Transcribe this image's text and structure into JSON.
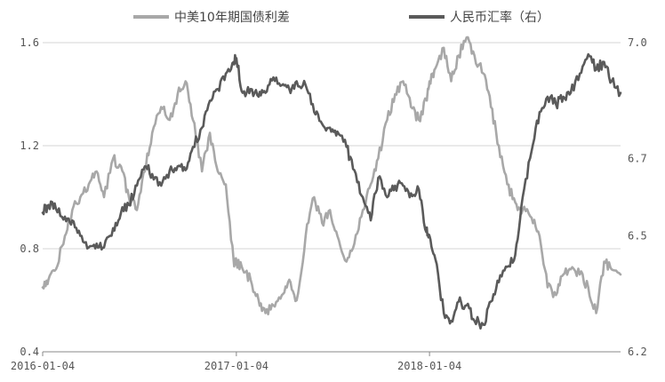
{
  "chart_data": {
    "type": "line",
    "title": "",
    "legend": {
      "placement": "top"
    },
    "grid": {
      "y": true,
      "x": false
    },
    "x_axis": {
      "type": "date",
      "range": [
        "2016-01-04",
        "2018-12-31"
      ],
      "ticks": [
        "2016-01-04",
        "2017-01-04",
        "2018-01-04"
      ]
    },
    "y_left": {
      "range": [
        0.4,
        1.6
      ],
      "ticks": [
        "0.4",
        "0.8",
        "1.2",
        "1.6"
      ]
    },
    "y_right": {
      "range": [
        6.2,
        7.0
      ],
      "ticks": [
        "6.2",
        "6.5",
        "6.7",
        "7.0"
      ]
    },
    "series": [
      {
        "name": "中美10年期国债利差",
        "axis": "left",
        "color": "#a8a8a8",
        "points": [
          [
            "2016-01-04",
            0.65
          ],
          [
            "2016-01-15",
            0.68
          ],
          [
            "2016-01-29",
            0.72
          ],
          [
            "2016-02-15",
            0.85
          ],
          [
            "2016-02-29",
            0.95
          ],
          [
            "2016-03-15",
            1.0
          ],
          [
            "2016-03-31",
            1.05
          ],
          [
            "2016-04-15",
            1.1
          ],
          [
            "2016-04-29",
            1.0
          ],
          [
            "2016-05-16",
            1.15
          ],
          [
            "2016-05-31",
            1.12
          ],
          [
            "2016-06-15",
            1.0
          ],
          [
            "2016-06-30",
            0.95
          ],
          [
            "2016-07-15",
            1.1
          ],
          [
            "2016-07-29",
            1.25
          ],
          [
            "2016-08-15",
            1.35
          ],
          [
            "2016-08-31",
            1.3
          ],
          [
            "2016-09-15",
            1.4
          ],
          [
            "2016-09-30",
            1.45
          ],
          [
            "2016-10-14",
            1.3
          ],
          [
            "2016-10-31",
            1.1
          ],
          [
            "2016-11-15",
            1.25
          ],
          [
            "2016-11-30",
            1.1
          ],
          [
            "2016-12-15",
            1.05
          ],
          [
            "2016-12-30",
            0.75
          ],
          [
            "2017-01-04",
            0.75
          ],
          [
            "2017-01-16",
            0.72
          ],
          [
            "2017-01-31",
            0.68
          ],
          [
            "2017-02-15",
            0.6
          ],
          [
            "2017-02-28",
            0.55
          ],
          [
            "2017-03-15",
            0.58
          ],
          [
            "2017-03-31",
            0.62
          ],
          [
            "2017-04-14",
            0.68
          ],
          [
            "2017-04-28",
            0.6
          ],
          [
            "2017-05-15",
            0.85
          ],
          [
            "2017-05-31",
            1.0
          ],
          [
            "2017-06-15",
            0.9
          ],
          [
            "2017-06-30",
            0.95
          ],
          [
            "2017-07-14",
            0.85
          ],
          [
            "2017-07-31",
            0.75
          ],
          [
            "2017-08-15",
            0.82
          ],
          [
            "2017-08-31",
            0.95
          ],
          [
            "2017-09-15",
            1.05
          ],
          [
            "2017-09-29",
            1.15
          ],
          [
            "2017-10-16",
            1.3
          ],
          [
            "2017-10-31",
            1.4
          ],
          [
            "2017-11-15",
            1.45
          ],
          [
            "2017-11-30",
            1.35
          ],
          [
            "2017-12-15",
            1.3
          ],
          [
            "2017-12-29",
            1.38
          ],
          [
            "2018-01-04",
            1.45
          ],
          [
            "2018-01-15",
            1.5
          ],
          [
            "2018-01-31",
            1.58
          ],
          [
            "2018-02-14",
            1.45
          ],
          [
            "2018-02-28",
            1.55
          ],
          [
            "2018-03-15",
            1.62
          ],
          [
            "2018-03-30",
            1.55
          ],
          [
            "2018-04-16",
            1.48
          ],
          [
            "2018-04-30",
            1.35
          ],
          [
            "2018-05-15",
            1.2
          ],
          [
            "2018-05-31",
            1.05
          ],
          [
            "2018-06-15",
            0.98
          ],
          [
            "2018-06-29",
            0.95
          ],
          [
            "2018-07-16",
            0.92
          ],
          [
            "2018-07-31",
            0.85
          ],
          [
            "2018-08-15",
            0.65
          ],
          [
            "2018-08-31",
            0.62
          ],
          [
            "2018-09-14",
            0.7
          ],
          [
            "2018-09-28",
            0.72
          ],
          [
            "2018-10-15",
            0.7
          ],
          [
            "2018-10-31",
            0.65
          ],
          [
            "2018-11-15",
            0.55
          ],
          [
            "2018-11-30",
            0.75
          ],
          [
            "2018-12-14",
            0.72
          ],
          [
            "2018-12-31",
            0.7
          ]
        ]
      },
      {
        "name": "人民币汇率（右）",
        "axis": "right",
        "color": "#5a5a5a",
        "points": [
          [
            "2016-01-04",
            6.56
          ],
          [
            "2016-01-15",
            6.58
          ],
          [
            "2016-01-29",
            6.57
          ],
          [
            "2016-02-15",
            6.55
          ],
          [
            "2016-02-29",
            6.54
          ],
          [
            "2016-03-15",
            6.5
          ],
          [
            "2016-03-31",
            6.47
          ],
          [
            "2016-04-15",
            6.48
          ],
          [
            "2016-04-29",
            6.47
          ],
          [
            "2016-05-16",
            6.52
          ],
          [
            "2016-05-31",
            6.56
          ],
          [
            "2016-06-15",
            6.58
          ],
          [
            "2016-06-30",
            6.63
          ],
          [
            "2016-07-15",
            6.68
          ],
          [
            "2016-07-29",
            6.66
          ],
          [
            "2016-08-15",
            6.63
          ],
          [
            "2016-08-31",
            6.67
          ],
          [
            "2016-09-15",
            6.68
          ],
          [
            "2016-09-30",
            6.67
          ],
          [
            "2016-10-14",
            6.73
          ],
          [
            "2016-10-31",
            6.78
          ],
          [
            "2016-11-15",
            6.85
          ],
          [
            "2016-11-30",
            6.88
          ],
          [
            "2016-12-15",
            6.92
          ],
          [
            "2016-12-30",
            6.95
          ],
          [
            "2017-01-04",
            6.96
          ],
          [
            "2017-01-16",
            6.87
          ],
          [
            "2017-01-31",
            6.88
          ],
          [
            "2017-02-15",
            6.86
          ],
          [
            "2017-02-28",
            6.87
          ],
          [
            "2017-03-15",
            6.91
          ],
          [
            "2017-03-31",
            6.89
          ],
          [
            "2017-04-14",
            6.88
          ],
          [
            "2017-04-28",
            6.9
          ],
          [
            "2017-05-15",
            6.89
          ],
          [
            "2017-05-31",
            6.82
          ],
          [
            "2017-06-15",
            6.79
          ],
          [
            "2017-06-30",
            6.78
          ],
          [
            "2017-07-14",
            6.77
          ],
          [
            "2017-07-31",
            6.73
          ],
          [
            "2017-08-15",
            6.67
          ],
          [
            "2017-08-31",
            6.6
          ],
          [
            "2017-09-15",
            6.54
          ],
          [
            "2017-09-29",
            6.65
          ],
          [
            "2017-10-16",
            6.6
          ],
          [
            "2017-10-31",
            6.63
          ],
          [
            "2017-11-15",
            6.63
          ],
          [
            "2017-11-30",
            6.61
          ],
          [
            "2017-12-15",
            6.62
          ],
          [
            "2017-12-29",
            6.51
          ],
          [
            "2018-01-04",
            6.5
          ],
          [
            "2018-01-15",
            6.44
          ],
          [
            "2018-01-31",
            6.3
          ],
          [
            "2018-02-14",
            6.28
          ],
          [
            "2018-02-28",
            6.33
          ],
          [
            "2018-03-15",
            6.32
          ],
          [
            "2018-03-30",
            6.28
          ],
          [
            "2018-04-16",
            6.27
          ],
          [
            "2018-04-30",
            6.33
          ],
          [
            "2018-05-15",
            6.38
          ],
          [
            "2018-05-31",
            6.42
          ],
          [
            "2018-06-15",
            6.45
          ],
          [
            "2018-06-29",
            6.6
          ],
          [
            "2018-07-16",
            6.72
          ],
          [
            "2018-07-31",
            6.82
          ],
          [
            "2018-08-15",
            6.86
          ],
          [
            "2018-08-31",
            6.84
          ],
          [
            "2018-09-14",
            6.86
          ],
          [
            "2018-09-28",
            6.87
          ],
          [
            "2018-10-15",
            6.92
          ],
          [
            "2018-10-31",
            6.97
          ],
          [
            "2018-11-15",
            6.93
          ],
          [
            "2018-11-30",
            6.95
          ],
          [
            "2018-12-14",
            6.9
          ],
          [
            "2018-12-31",
            6.87
          ]
        ]
      }
    ]
  }
}
